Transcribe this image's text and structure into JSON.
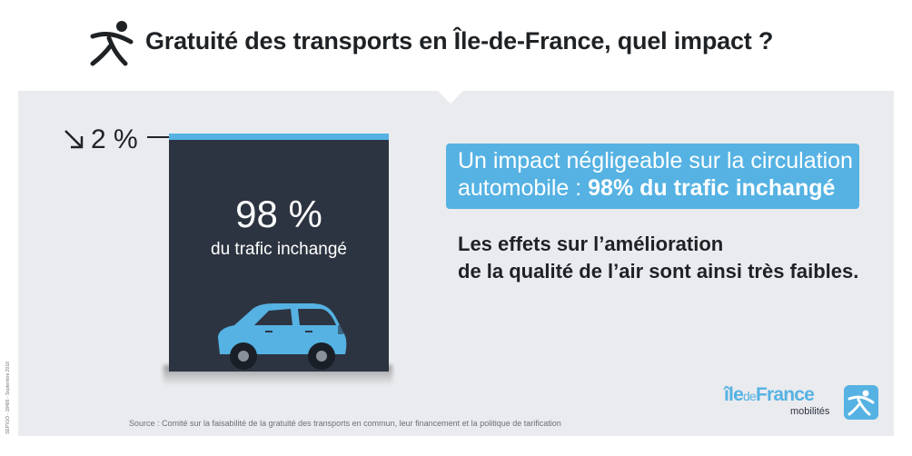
{
  "header": {
    "title": "Gratuité des transports en Île-de-France, quel impact ?",
    "logo_icon": "person-running-icon"
  },
  "left_figure": {
    "change_label": "2 %",
    "change_icon": "arrow-down-right-icon",
    "unchanged_value": "98 %",
    "unchanged_label": "du trafic inchangé",
    "illustration": "car-icon",
    "accent_color": "#55b2e3",
    "block_color": "#2d3441"
  },
  "callout": {
    "line1": "Un impact négligeable sur la circulation",
    "line2_prefix": "automobile :",
    "line2_bold": "98% du trafic inchangé"
  },
  "effects": {
    "line1": "Les effets sur l’amélioration",
    "line2": "de la qualité de l’air sont ainsi très faibles."
  },
  "footer": {
    "source": "Source : Comité sur la faisabilité de la gratuité des transports en commun, leur financement et la politique de tarification",
    "side_note": "SEP'IGO - 18486 - Septembre 2018",
    "brand_ile": "île",
    "brand_de": "de",
    "brand_france": "France",
    "brand_sub": "mobilités",
    "brand_icon": "ile-de-france-mobilites-logo-icon"
  }
}
